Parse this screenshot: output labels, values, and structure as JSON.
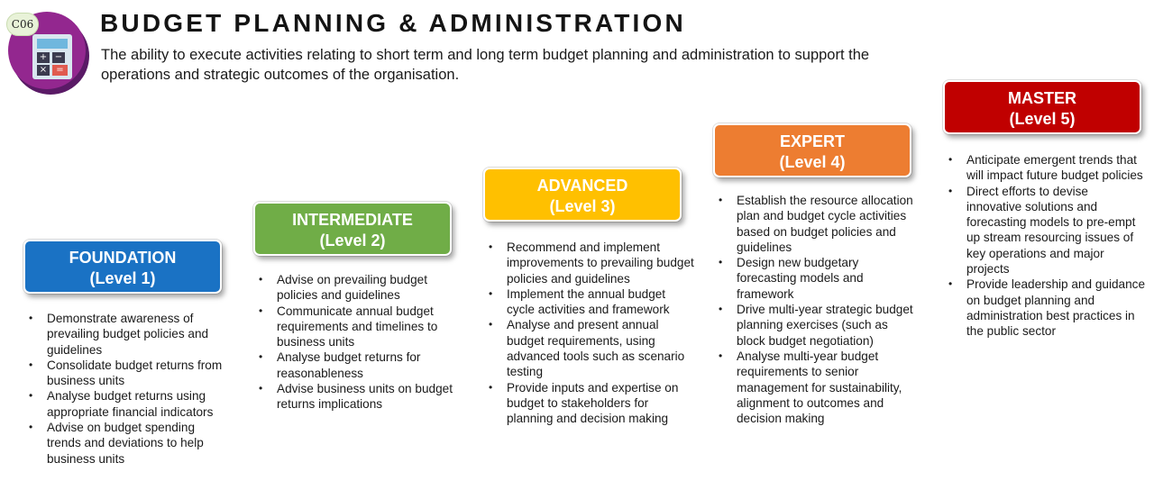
{
  "header": {
    "code": "C06",
    "icon": "calculator-icon",
    "title": "BUDGET PLANNING & ADMINISTRATION",
    "description": "The ability to execute activities relating to short term and long term budget planning and administration to support the operations and strategic outcomes of the organisation."
  },
  "levels": [
    {
      "name": "FOUNDATION",
      "level": "(Level 1)",
      "color": "#1a72c4",
      "items": [
        "Demonstrate awareness of prevailing budget policies and guidelines",
        "Consolidate budget returns from business units",
        "Analyse budget returns using appropriate financial indicators",
        "Advise on budget spending trends and deviations to help business units"
      ]
    },
    {
      "name": "INTERMEDIATE",
      "level": "(Level 2)",
      "color": "#70ad47",
      "items": [
        "Advise on prevailing budget policies and guidelines",
        "Communicate annual budget requirements and timelines to business units",
        "Analyse budget returns for reasonableness",
        "Advise business units on budget returns implications"
      ]
    },
    {
      "name": "ADVANCED",
      "level": "(Level 3)",
      "color": "#ffc000",
      "items": [
        "Recommend and implement improvements to prevailing budget policies and guidelines",
        "Implement the annual budget cycle activities and framework",
        "Analyse and present annual budget requirements, using advanced tools such as scenario testing",
        "Provide inputs and expertise on budget to stakeholders for planning and decision making"
      ]
    },
    {
      "name": "EXPERT",
      "level": "(Level 4)",
      "color": "#ed7d31",
      "items": [
        "Establish the resource allocation plan and budget cycle activities based on budget policies and guidelines",
        "Design new budgetary forecasting models and framework",
        "Drive multi-year strategic budget planning exercises (such as block budget negotiation)",
        "Analyse multi-year budget requirements to senior management for sustainability, alignment to outcomes and decision making"
      ]
    },
    {
      "name": "MASTER",
      "level": "(Level 5)",
      "color": "#c00000",
      "items": [
        "Anticipate emergent trends that will impact future budget policies",
        "Direct efforts to devise innovative solutions and forecasting models to pre-empt up stream resourcing issues of key operations and major projects",
        "Provide leadership and guidance on budget planning and administration best practices in the public sector"
      ]
    }
  ]
}
